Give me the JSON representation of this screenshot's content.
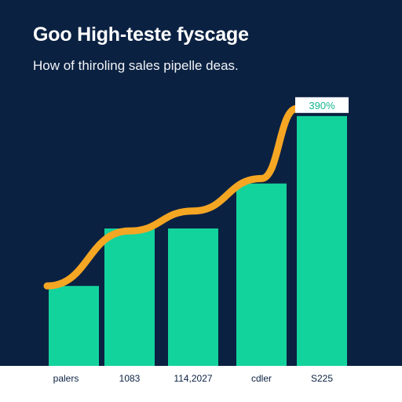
{
  "colors": {
    "background": "#0b2142",
    "bar": "#13d39c",
    "line": "#f5a623",
    "label_band": "#ffffff",
    "badge_text": "#14b58e"
  },
  "chart_data": {
    "type": "bar",
    "title": "Goo High-teste fyscage",
    "subtitle": "How of thiroling sales pipelle deas.",
    "categories": [
      "palers",
      "1083",
      "114,2027",
      "cdler",
      "S225"
    ],
    "values": [
      32,
      55,
      55,
      73,
      100
    ],
    "ylim": [
      0,
      110
    ],
    "line_overlay": {
      "values": [
        32,
        54,
        62,
        75,
        103
      ]
    },
    "data_labels": [
      {
        "index": 4,
        "text": "390%"
      }
    ],
    "grid": false,
    "legend": "none"
  }
}
